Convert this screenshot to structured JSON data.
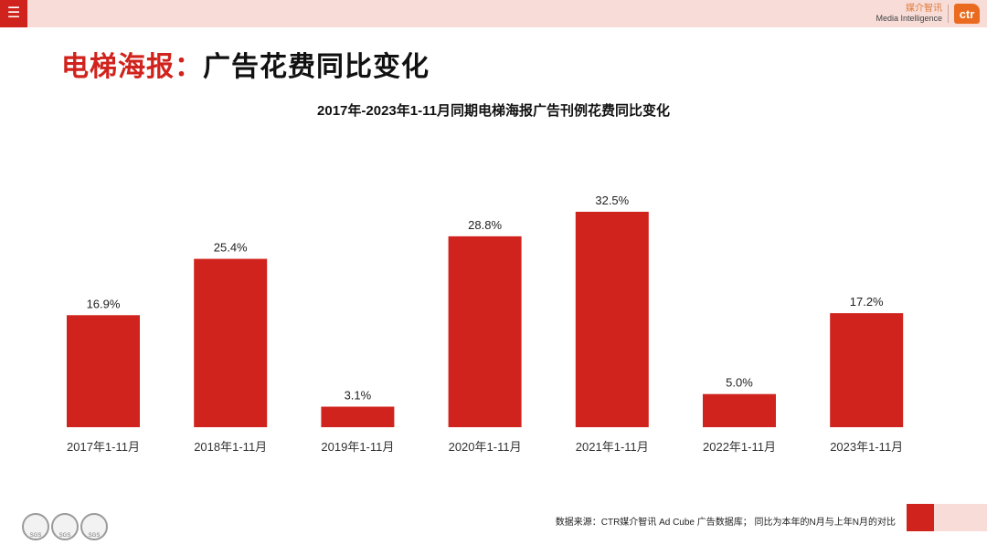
{
  "header": {
    "menu_icon": "menu-icon",
    "brand_cn": "媒介智讯",
    "brand_en": "Media Intelligence",
    "logo_text": "ctr"
  },
  "page": {
    "title_red": "电梯海报：",
    "title_black": "广告花费同比变化"
  },
  "footer": {
    "note": "数据来源：CTR媒介智讯 Ad Cube 广告数据库；  同比为本年的N月与上年N月的对比",
    "cert_labels": [
      "SGS",
      "SGS",
      "SGS"
    ]
  },
  "colors": {
    "accent": "#d0231d",
    "bar": "#d0231d",
    "topbar": "#f7dcd8"
  },
  "chart_data": {
    "type": "bar",
    "title": "2017年-2023年1-11月同期电梯海报广告刊例花费同比变化",
    "categories": [
      "2017年1-11月",
      "2018年1-11月",
      "2019年1-11月",
      "2020年1-11月",
      "2021年1-11月",
      "2022年1-11月",
      "2023年1-11月"
    ],
    "values": [
      16.9,
      25.4,
      3.1,
      28.8,
      32.5,
      5.0,
      17.2
    ],
    "data_labels": [
      "16.9%",
      "25.4%",
      "3.1%",
      "28.8%",
      "32.5%",
      "5.0%",
      "17.2%"
    ],
    "unit": "%",
    "xlabel": "",
    "ylabel": "",
    "ylim": [
      0,
      32.5
    ],
    "grid": false,
    "legend": "none"
  }
}
